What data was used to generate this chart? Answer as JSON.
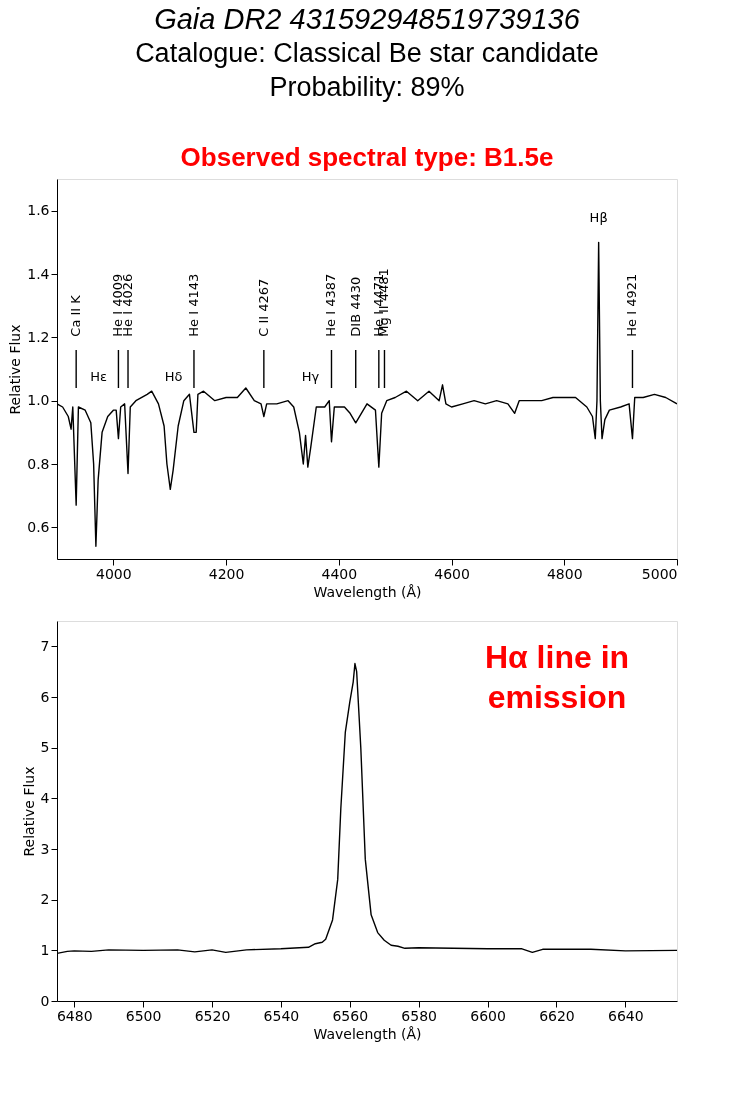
{
  "chart_data": [
    {
      "type": "line",
      "title": "Gaia DR2 431592948519739136",
      "subtitle": "Catalogue: Classical Be star candidate\nProbability: 89%",
      "xlabel": "Wavelength (Å)",
      "ylabel": "Relative Flux",
      "x": [
        3900,
        3910,
        3920,
        3925,
        3928,
        3934,
        3938,
        3950,
        3960,
        3965,
        3969,
        3973,
        3980,
        3990,
        4000,
        4005,
        4009,
        4013,
        4020,
        4026,
        4030,
        4040,
        4060,
        4068,
        4080,
        4090,
        4095,
        4101,
        4106,
        4115,
        4125,
        4135,
        4143,
        4147,
        4150,
        4160,
        4180,
        4200,
        4220,
        4235,
        4250,
        4262,
        4267,
        4272,
        4290,
        4310,
        4320,
        4330,
        4337,
        4341,
        4345,
        4350,
        4360,
        4375,
        4383,
        4387,
        4392,
        4410,
        4420,
        4430,
        4440,
        4450,
        4465,
        4471,
        4476,
        4485,
        4500,
        4520,
        4540,
        4560,
        4578,
        4584,
        4590,
        4600,
        4620,
        4640,
        4660,
        4680,
        4700,
        4712,
        4720,
        4740,
        4760,
        4780,
        4800,
        4820,
        4840,
        4850,
        4855,
        4858,
        4861,
        4864,
        4867,
        4872,
        4880,
        4900,
        4915,
        4921,
        4925,
        4940,
        4960,
        4980,
        5000
      ],
      "series": [
        {
          "color": "#000000",
          "values": [
            0.99,
            0.98,
            0.95,
            0.91,
            0.98,
            0.67,
            0.98,
            0.97,
            0.93,
            0.8,
            0.54,
            0.75,
            0.9,
            0.95,
            0.97,
            0.97,
            0.88,
            0.98,
            0.99,
            0.77,
            0.98,
            1.0,
            1.02,
            1.03,
            0.99,
            0.92,
            0.8,
            0.72,
            0.78,
            0.92,
            1.0,
            1.02,
            0.9,
            0.9,
            1.02,
            1.03,
            1.0,
            1.01,
            1.01,
            1.04,
            1.0,
            0.99,
            0.95,
            0.99,
            0.99,
            1.0,
            0.98,
            0.9,
            0.8,
            0.89,
            0.79,
            0.85,
            0.98,
            0.98,
            1.0,
            0.87,
            0.98,
            0.98,
            0.96,
            0.93,
            0.96,
            0.99,
            0.97,
            0.79,
            0.96,
            1.0,
            1.01,
            1.03,
            1.0,
            1.03,
            1.0,
            1.05,
            0.99,
            0.98,
            0.99,
            1.0,
            0.99,
            1.0,
            0.99,
            0.96,
            1.0,
            1.0,
            1.0,
            1.01,
            1.01,
            1.01,
            0.98,
            0.95,
            0.88,
            1.0,
            1.5,
            1.0,
            0.88,
            0.94,
            0.97,
            0.98,
            0.99,
            0.88,
            1.01,
            1.01,
            1.02,
            1.01,
            0.99
          ]
        }
      ],
      "xlim": [
        3900,
        5000
      ],
      "ylim": [
        0.5,
        1.7
      ],
      "xticks": [
        4000,
        4200,
        4400,
        4600,
        4800,
        5000
      ],
      "yticks": [
        0.6,
        0.8,
        {
          "value": 1,
          "label": "1.0"
        },
        1.2,
        1.4,
        1.6
      ],
      "ref_lines": [
        {
          "axis": "x",
          "value": 3934,
          "label": "Ca II K"
        },
        {
          "axis": "x",
          "value": 4009,
          "label": "He I 4009"
        },
        {
          "axis": "x",
          "value": 4026,
          "label": "He I 4026"
        },
        {
          "axis": "x",
          "value": 4143,
          "label": "He I 4143"
        },
        {
          "axis": "x",
          "value": 4267,
          "label": "C II 4267"
        },
        {
          "axis": "x",
          "value": 4387,
          "label": "He I 4387"
        },
        {
          "axis": "x",
          "value": 4430,
          "label": "DIB 4430"
        },
        {
          "axis": "x",
          "value": 4471,
          "label": "He I 4471"
        },
        {
          "axis": "x",
          "value": 4481,
          "label": "Mg II 4481"
        },
        {
          "axis": "x",
          "value": 4921,
          "label": "He I 4921"
        }
      ],
      "annotations": [
        "Observed spectral type: B1.5e",
        "Hε",
        "Hδ",
        "Hγ",
        {
          "text": "Hβ",
          "x": 4861,
          "y": 1.5
        }
      ]
    },
    {
      "type": "line",
      "xlabel": "Wavelength (Å)",
      "ylabel": "Relative Flux",
      "x": [
        6475,
        6478,
        6480,
        6485,
        6490,
        6500,
        6510,
        6515,
        6520,
        6524,
        6530,
        6540,
        6548,
        6550,
        6552,
        6553,
        6555,
        6556.5,
        6557.4,
        6558.7,
        6560,
        6561,
        6561.5,
        6562,
        6563.2,
        6564.5,
        6566.2,
        6568.1,
        6570,
        6572,
        6574,
        6576,
        6580,
        6590,
        6600,
        6610,
        6613,
        6616,
        6630,
        6640,
        6655
      ],
      "series": [
        {
          "color": "#000000",
          "values": [
            0.94,
            0.98,
            0.99,
            0.98,
            1.01,
            1.0,
            1.01,
            0.97,
            1.01,
            0.96,
            1.01,
            1.03,
            1.06,
            1.13,
            1.16,
            1.22,
            1.6,
            2.4,
            3.8,
            5.3,
            5.9,
            6.3,
            6.66,
            6.5,
            5.0,
            2.8,
            1.7,
            1.35,
            1.2,
            1.1,
            1.08,
            1.04,
            1.05,
            1.04,
            1.03,
            1.03,
            0.96,
            1.02,
            1.02,
            0.99,
            1.0
          ]
        }
      ],
      "xlim": [
        6475,
        6655
      ],
      "ylim": [
        0,
        7.5
      ],
      "xticks": [
        6480,
        6500,
        6520,
        6540,
        6560,
        6580,
        6600,
        6620,
        6640
      ],
      "yticks": [
        0,
        1,
        2,
        3,
        4,
        5,
        6,
        7
      ],
      "annotations": [
        "Hα line in emission"
      ]
    }
  ]
}
